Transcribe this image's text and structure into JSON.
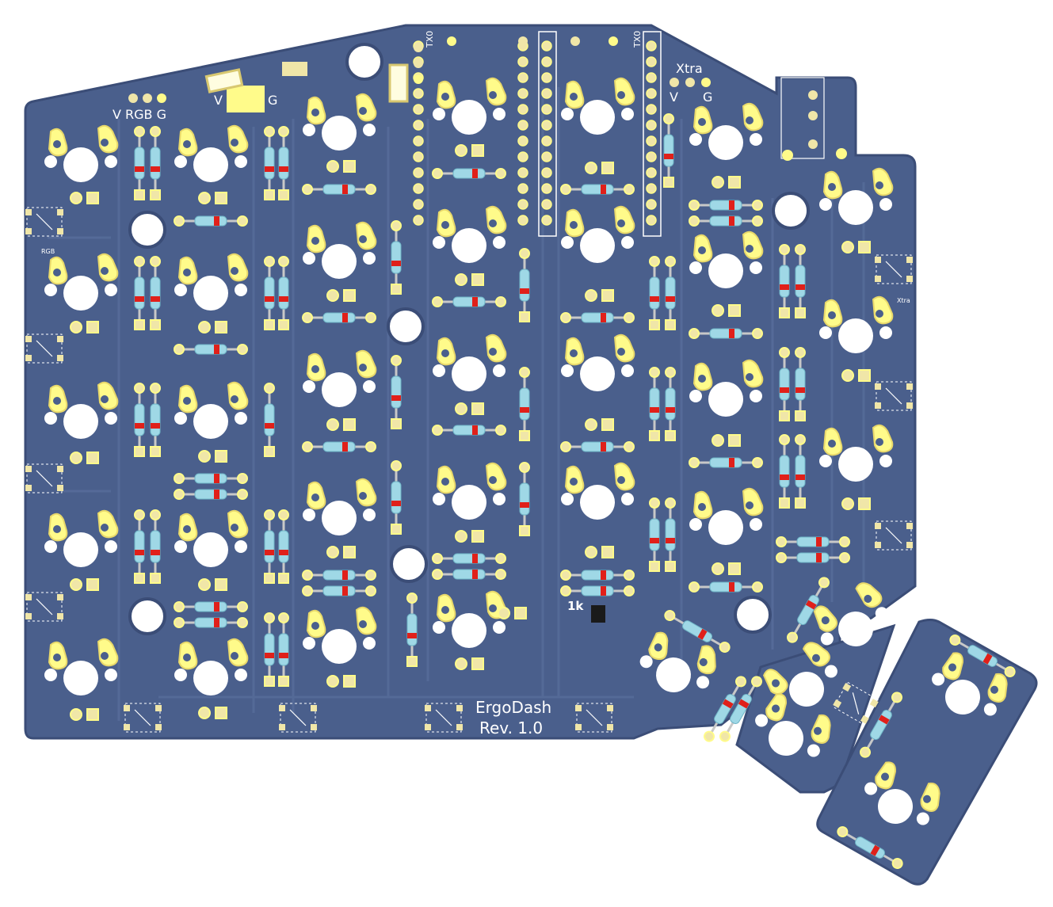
{
  "image": {
    "subject": "ErgoDash keyboard PCB render",
    "colors": {
      "board": "#4a5f8c",
      "board_edge": "#3b4d77",
      "trace": "#566c99",
      "pad": "#f0e6a8",
      "pad_yellow": "#fffb8a",
      "hole": "#ffffff",
      "silk": "#ffffff",
      "diode_body": "#9fd8e6",
      "diode_band": "#e0201a",
      "outline": "#e8e8e8"
    }
  },
  "labels": {
    "title": "ErgoDash",
    "revision": "Rev. 1.0",
    "rgb_header": "V RGB G",
    "xtra_header": "Xtra",
    "xtra_v": "V",
    "xtra_g": "G",
    "led_v": "V",
    "led_g": "G",
    "rgb_small": "RGB",
    "xtra_small": "Xtra",
    "tx0_left": "TX0",
    "tx0_right": "TX0",
    "resistor": "1k"
  }
}
